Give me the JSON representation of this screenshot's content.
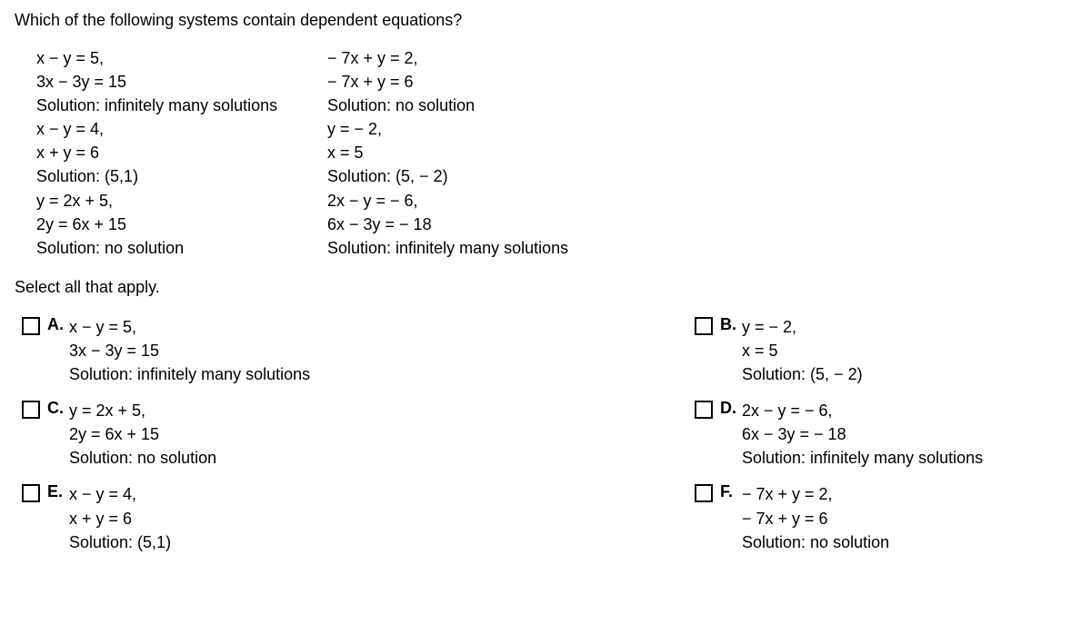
{
  "question": "Which of the following systems contain dependent equations?",
  "systems_col1": [
    {
      "l1": "x − y = 5,",
      "l2": "3x − 3y = 15",
      "l3": "Solution: infinitely many solutions"
    },
    {
      "l1": "x − y = 4,",
      "l2": "x + y = 6",
      "l3": "Solution: (5,1)"
    },
    {
      "l1": "y = 2x + 5,",
      "l2": "2y = 6x + 15",
      "l3": "Solution: no solution"
    }
  ],
  "systems_col2": [
    {
      "l1": "− 7x + y = 2,",
      "l2": "− 7x + y = 6",
      "l3": "Solution: no solution"
    },
    {
      "l1": "y = − 2,",
      "l2": "x = 5",
      "l3": "Solution: (5, − 2)"
    },
    {
      "l1": "2x − y = − 6,",
      "l2": "6x − 3y = − 18",
      "l3": "Solution: infinitely many solutions"
    }
  ],
  "select_text": "Select all that apply.",
  "options": {
    "A": {
      "label": "A.",
      "l1": "x − y = 5,",
      "l2": "3x − 3y = 15",
      "l3": "Solution: infinitely many solutions"
    },
    "B": {
      "label": "B.",
      "l1": "y = − 2,",
      "l2": "x = 5",
      "l3": "Solution: (5, − 2)"
    },
    "C": {
      "label": "C.",
      "l1": "y = 2x + 5,",
      "l2": "2y = 6x + 15",
      "l3": "Solution: no solution"
    },
    "D": {
      "label": "D.",
      "l1": "2x − y = − 6,",
      "l2": "6x − 3y = − 18",
      "l3": "Solution: infinitely many solutions"
    },
    "E": {
      "label": "E.",
      "l1": "x − y = 4,",
      "l2": "x + y = 6",
      "l3": "Solution: (5,1)"
    },
    "F": {
      "label": "F.",
      "l1": "− 7x + y = 2,",
      "l2": "− 7x + y = 6",
      "l3": "Solution: no solution"
    }
  }
}
